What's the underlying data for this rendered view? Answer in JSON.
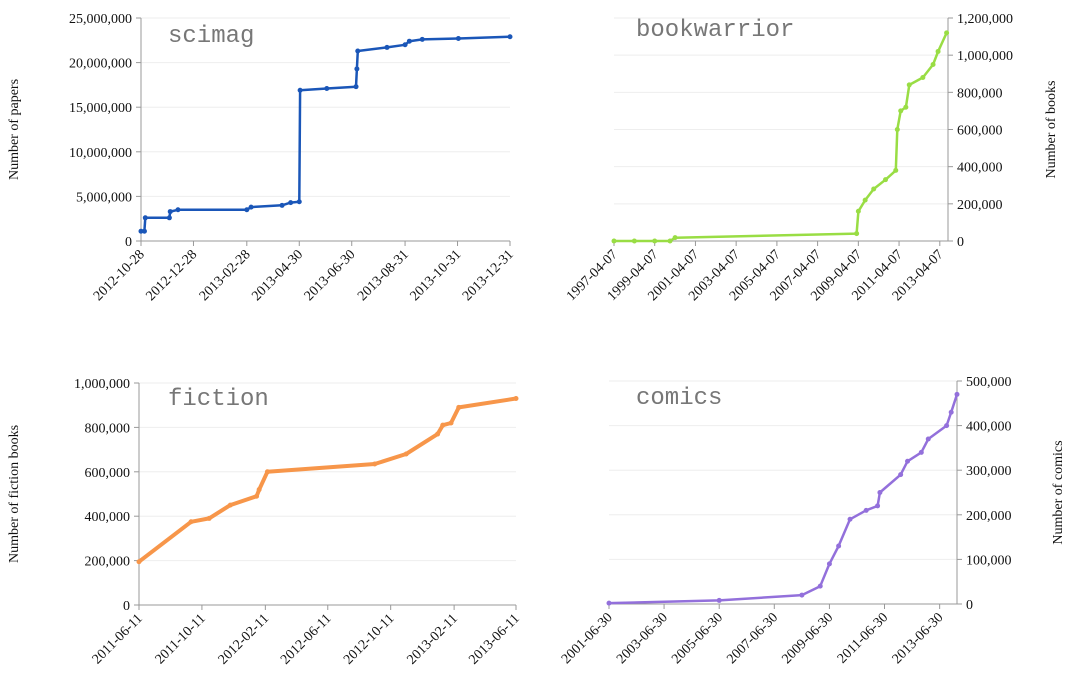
{
  "chart_data": [
    {
      "type": "line",
      "title": "scimag",
      "ylabel": "Number of papers",
      "axis_side": "left",
      "color": "#1a56b8",
      "grid": true,
      "x": [
        "2012-10-28",
        "2012-11-01",
        "2012-11-02",
        "2012-11-30",
        "2012-12-01",
        "2012-12-10",
        "2013-02-28",
        "2013-03-05",
        "2013-04-10",
        "2013-04-20",
        "2013-04-30",
        "2013-05-01",
        "2013-06-01",
        "2013-07-05",
        "2013-07-06",
        "2013-07-07",
        "2013-08-10",
        "2013-08-31",
        "2013-09-05",
        "2013-09-20",
        "2013-11-01",
        "2013-12-31"
      ],
      "series": [
        {
          "name": "scimag",
          "color": "#1a56b8",
          "values": [
            1100000,
            1100000,
            2600000,
            2600000,
            3300000,
            3500000,
            3500000,
            3800000,
            4000000,
            4300000,
            4400000,
            16900000,
            17100000,
            17300000,
            19300000,
            21300000,
            21700000,
            22000000,
            22400000,
            22600000,
            22700000,
            22900000
          ]
        }
      ],
      "xlim": [
        "2012-10-28",
        "2013-12-31"
      ],
      "xticks": [
        "2012-10-28",
        "2012-12-28",
        "2013-02-28",
        "2013-04-30",
        "2013-06-30",
        "2013-08-31",
        "2013-10-31",
        "2013-12-31"
      ],
      "ylim": [
        0,
        25000000
      ],
      "yticks": [
        0,
        {
          "value": 5000000,
          "label": "5,000,000"
        },
        {
          "value": 10000000,
          "label": "10,000,000"
        },
        {
          "value": 15000000,
          "label": "15,000,000"
        },
        {
          "value": 20000000,
          "label": "20,000,000"
        },
        {
          "value": 25000000,
          "label": "25,000,000"
        }
      ]
    },
    {
      "type": "line",
      "title": "bookwarrior",
      "ylabel": "Number of books",
      "axis_side": "right",
      "color": "#99dd44",
      "grid": true,
      "x": [
        "1997-04-07",
        "1998-04-07",
        "1999-04-07",
        "2000-01-07",
        "2000-04-07",
        "2009-03-07",
        "2009-04-07",
        "2009-08-07",
        "2010-01-07",
        "2010-08-07",
        "2011-02-07",
        "2011-03-07",
        "2011-05-07",
        "2011-08-07",
        "2011-10-07",
        "2012-06-07",
        "2012-12-07",
        "2013-03-07",
        "2013-08-07"
      ],
      "series": [
        {
          "name": "bookwarrior",
          "color": "#99dd44",
          "values": [
            0,
            0,
            0,
            0,
            18000,
            40000,
            160000,
            220000,
            280000,
            330000,
            380000,
            600000,
            700000,
            720000,
            840000,
            880000,
            950000,
            1020000,
            1120000
          ]
        }
      ],
      "xlim": [
        "1997-04-07",
        "2013-09-01"
      ],
      "xticks": [
        "1997-04-07",
        "1999-04-07",
        "2001-04-07",
        "2003-04-07",
        "2005-04-07",
        "2007-04-07",
        "2009-04-07",
        "2011-04-07",
        "2013-04-07"
      ],
      "ylim": [
        0,
        1200000
      ],
      "yticks": [
        0,
        {
          "value": 200000,
          "label": "200,000"
        },
        {
          "value": 400000,
          "label": "400,000"
        },
        {
          "value": 600000,
          "label": "600,000"
        },
        {
          "value": 800000,
          "label": "800,000"
        },
        {
          "value": 1000000,
          "label": "1,000,000"
        },
        {
          "value": 1200000,
          "label": "1,200,000"
        }
      ]
    },
    {
      "type": "line",
      "title": "fiction",
      "ylabel": "Number of fiction books",
      "axis_side": "left",
      "color": "#f7964a",
      "grid": true,
      "x": [
        "2011-06-11",
        "2011-09-20",
        "2011-10-25",
        "2011-12-05",
        "2012-01-25",
        "2012-01-30",
        "2012-02-15",
        "2012-09-10",
        "2012-11-10",
        "2013-01-10",
        "2013-01-20",
        "2013-02-05",
        "2013-02-20",
        "2013-06-11"
      ],
      "series": [
        {
          "name": "fiction",
          "color": "#f7964a",
          "values": [
            195000,
            375000,
            390000,
            450000,
            490000,
            520000,
            600000,
            635000,
            680000,
            770000,
            810000,
            820000,
            890000,
            930000
          ]
        }
      ],
      "xlim": [
        "2011-06-11",
        "2013-06-11"
      ],
      "xticks": [
        "2011-06-11",
        "2011-10-11",
        "2012-02-11",
        "2012-06-11",
        "2012-10-11",
        "2013-02-11",
        "2013-06-11"
      ],
      "ylim": [
        0,
        1000000
      ],
      "yticks": [
        0,
        {
          "value": 200000,
          "label": "200,000"
        },
        {
          "value": 400000,
          "label": "400,000"
        },
        {
          "value": 600000,
          "label": "600,000"
        },
        {
          "value": 800000,
          "label": "800,000"
        },
        {
          "value": 1000000,
          "label": "1,000,000"
        }
      ]
    },
    {
      "type": "line",
      "title": "comics",
      "ylabel": "Number of comics",
      "axis_side": "right",
      "color": "#9370db",
      "grid": true,
      "x": [
        "2001-06-30",
        "2005-06-30",
        "2008-06-30",
        "2009-02-28",
        "2009-06-30",
        "2009-10-30",
        "2010-03-30",
        "2010-10-30",
        "2011-03-30",
        "2011-04-30",
        "2012-01-30",
        "2012-04-30",
        "2012-10-30",
        "2013-01-30",
        "2013-09-30",
        "2013-11-30",
        "2014-02-15"
      ],
      "series": [
        {
          "name": "comics",
          "color": "#9370db",
          "values": [
            2000,
            8000,
            20000,
            40000,
            90000,
            130000,
            190000,
            210000,
            220000,
            250000,
            290000,
            320000,
            340000,
            370000,
            400000,
            430000,
            470000
          ]
        }
      ],
      "xlim": [
        "2001-06-30",
        "2014-02-15"
      ],
      "xticks": [
        "2001-06-30",
        "2003-06-30",
        "2005-06-30",
        "2007-06-30",
        "2009-06-30",
        "2011-06-30",
        "2013-06-30"
      ],
      "ylim": [
        0,
        500000
      ],
      "yticks": [
        0,
        {
          "value": 100000,
          "label": "100,000"
        },
        {
          "value": 200000,
          "label": "200,000"
        },
        {
          "value": 300000,
          "label": "300,000"
        },
        {
          "value": 400000,
          "label": "400,000"
        },
        {
          "value": 500000,
          "label": "500,000"
        }
      ]
    }
  ]
}
